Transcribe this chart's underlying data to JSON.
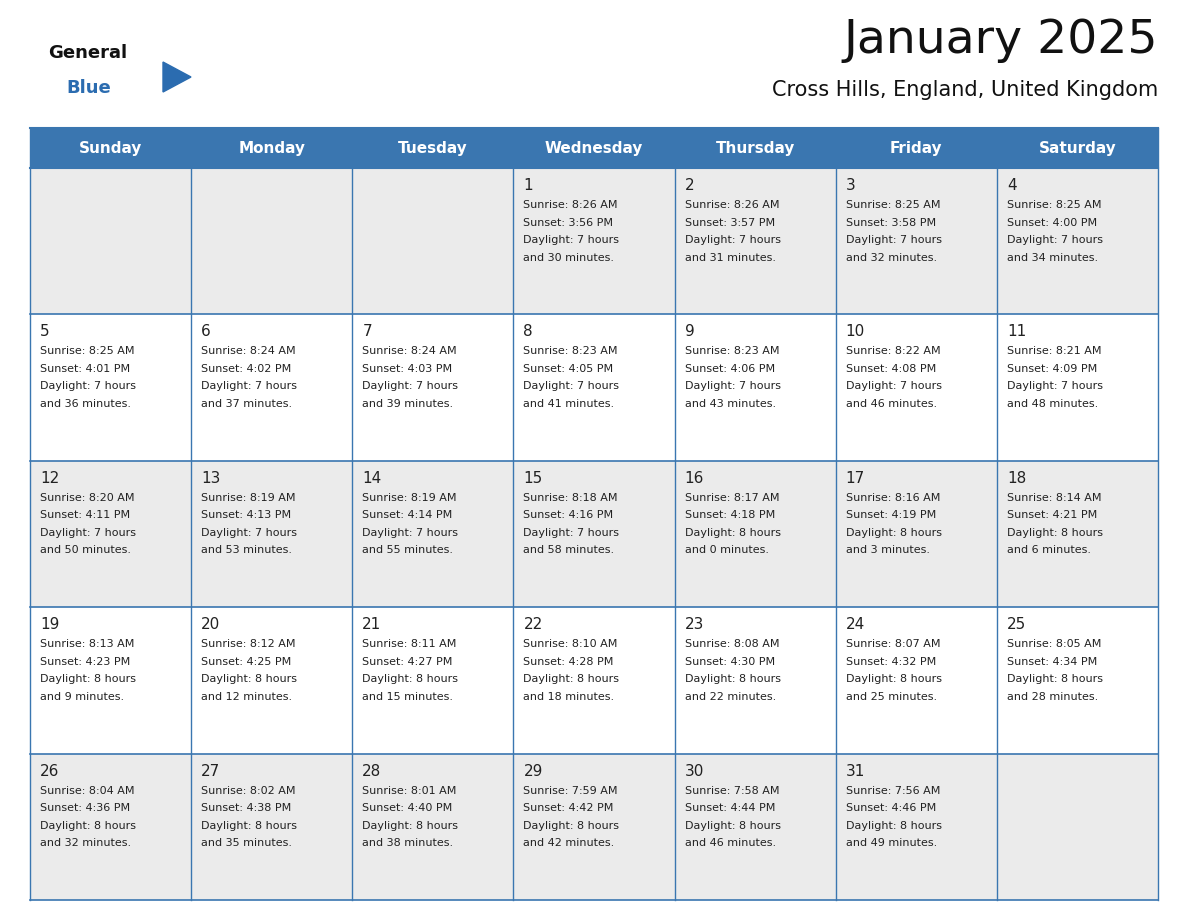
{
  "title": "January 2025",
  "subtitle": "Cross Hills, England, United Kingdom",
  "days_of_week": [
    "Sunday",
    "Monday",
    "Tuesday",
    "Wednesday",
    "Thursday",
    "Friday",
    "Saturday"
  ],
  "header_bg": "#3A76B0",
  "header_text": "#FFFFFF",
  "cell_bg_light": "#EBEBEB",
  "cell_bg_white": "#FFFFFF",
  "cell_border": "#3A76B0",
  "day_num_color": "#222222",
  "text_color": "#222222",
  "title_color": "#111111",
  "subtitle_color": "#111111",
  "logo_general_color": "#111111",
  "logo_blue_color": "#2B6CB0",
  "calendar": [
    [
      null,
      null,
      null,
      {
        "day": "1",
        "sunrise": "8:26 AM",
        "sunset": "3:56 PM",
        "daylight_hours": "7 hours",
        "daylight_mins": "and 30 minutes."
      },
      {
        "day": "2",
        "sunrise": "8:26 AM",
        "sunset": "3:57 PM",
        "daylight_hours": "7 hours",
        "daylight_mins": "and 31 minutes."
      },
      {
        "day": "3",
        "sunrise": "8:25 AM",
        "sunset": "3:58 PM",
        "daylight_hours": "7 hours",
        "daylight_mins": "and 32 minutes."
      },
      {
        "day": "4",
        "sunrise": "8:25 AM",
        "sunset": "4:00 PM",
        "daylight_hours": "7 hours",
        "daylight_mins": "and 34 minutes."
      }
    ],
    [
      {
        "day": "5",
        "sunrise": "8:25 AM",
        "sunset": "4:01 PM",
        "daylight_hours": "7 hours",
        "daylight_mins": "and 36 minutes."
      },
      {
        "day": "6",
        "sunrise": "8:24 AM",
        "sunset": "4:02 PM",
        "daylight_hours": "7 hours",
        "daylight_mins": "and 37 minutes."
      },
      {
        "day": "7",
        "sunrise": "8:24 AM",
        "sunset": "4:03 PM",
        "daylight_hours": "7 hours",
        "daylight_mins": "and 39 minutes."
      },
      {
        "day": "8",
        "sunrise": "8:23 AM",
        "sunset": "4:05 PM",
        "daylight_hours": "7 hours",
        "daylight_mins": "and 41 minutes."
      },
      {
        "day": "9",
        "sunrise": "8:23 AM",
        "sunset": "4:06 PM",
        "daylight_hours": "7 hours",
        "daylight_mins": "and 43 minutes."
      },
      {
        "day": "10",
        "sunrise": "8:22 AM",
        "sunset": "4:08 PM",
        "daylight_hours": "7 hours",
        "daylight_mins": "and 46 minutes."
      },
      {
        "day": "11",
        "sunrise": "8:21 AM",
        "sunset": "4:09 PM",
        "daylight_hours": "7 hours",
        "daylight_mins": "and 48 minutes."
      }
    ],
    [
      {
        "day": "12",
        "sunrise": "8:20 AM",
        "sunset": "4:11 PM",
        "daylight_hours": "7 hours",
        "daylight_mins": "and 50 minutes."
      },
      {
        "day": "13",
        "sunrise": "8:19 AM",
        "sunset": "4:13 PM",
        "daylight_hours": "7 hours",
        "daylight_mins": "and 53 minutes."
      },
      {
        "day": "14",
        "sunrise": "8:19 AM",
        "sunset": "4:14 PM",
        "daylight_hours": "7 hours",
        "daylight_mins": "and 55 minutes."
      },
      {
        "day": "15",
        "sunrise": "8:18 AM",
        "sunset": "4:16 PM",
        "daylight_hours": "7 hours",
        "daylight_mins": "and 58 minutes."
      },
      {
        "day": "16",
        "sunrise": "8:17 AM",
        "sunset": "4:18 PM",
        "daylight_hours": "8 hours",
        "daylight_mins": "and 0 minutes."
      },
      {
        "day": "17",
        "sunrise": "8:16 AM",
        "sunset": "4:19 PM",
        "daylight_hours": "8 hours",
        "daylight_mins": "and 3 minutes."
      },
      {
        "day": "18",
        "sunrise": "8:14 AM",
        "sunset": "4:21 PM",
        "daylight_hours": "8 hours",
        "daylight_mins": "and 6 minutes."
      }
    ],
    [
      {
        "day": "19",
        "sunrise": "8:13 AM",
        "sunset": "4:23 PM",
        "daylight_hours": "8 hours",
        "daylight_mins": "and 9 minutes."
      },
      {
        "day": "20",
        "sunrise": "8:12 AM",
        "sunset": "4:25 PM",
        "daylight_hours": "8 hours",
        "daylight_mins": "and 12 minutes."
      },
      {
        "day": "21",
        "sunrise": "8:11 AM",
        "sunset": "4:27 PM",
        "daylight_hours": "8 hours",
        "daylight_mins": "and 15 minutes."
      },
      {
        "day": "22",
        "sunrise": "8:10 AM",
        "sunset": "4:28 PM",
        "daylight_hours": "8 hours",
        "daylight_mins": "and 18 minutes."
      },
      {
        "day": "23",
        "sunrise": "8:08 AM",
        "sunset": "4:30 PM",
        "daylight_hours": "8 hours",
        "daylight_mins": "and 22 minutes."
      },
      {
        "day": "24",
        "sunrise": "8:07 AM",
        "sunset": "4:32 PM",
        "daylight_hours": "8 hours",
        "daylight_mins": "and 25 minutes."
      },
      {
        "day": "25",
        "sunrise": "8:05 AM",
        "sunset": "4:34 PM",
        "daylight_hours": "8 hours",
        "daylight_mins": "and 28 minutes."
      }
    ],
    [
      {
        "day": "26",
        "sunrise": "8:04 AM",
        "sunset": "4:36 PM",
        "daylight_hours": "8 hours",
        "daylight_mins": "and 32 minutes."
      },
      {
        "day": "27",
        "sunrise": "8:02 AM",
        "sunset": "4:38 PM",
        "daylight_hours": "8 hours",
        "daylight_mins": "and 35 minutes."
      },
      {
        "day": "28",
        "sunrise": "8:01 AM",
        "sunset": "4:40 PM",
        "daylight_hours": "8 hours",
        "daylight_mins": "and 38 minutes."
      },
      {
        "day": "29",
        "sunrise": "7:59 AM",
        "sunset": "4:42 PM",
        "daylight_hours": "8 hours",
        "daylight_mins": "and 42 minutes."
      },
      {
        "day": "30",
        "sunrise": "7:58 AM",
        "sunset": "4:44 PM",
        "daylight_hours": "8 hours",
        "daylight_mins": "and 46 minutes."
      },
      {
        "day": "31",
        "sunrise": "7:56 AM",
        "sunset": "4:46 PM",
        "daylight_hours": "8 hours",
        "daylight_mins": "and 49 minutes."
      },
      null
    ]
  ]
}
